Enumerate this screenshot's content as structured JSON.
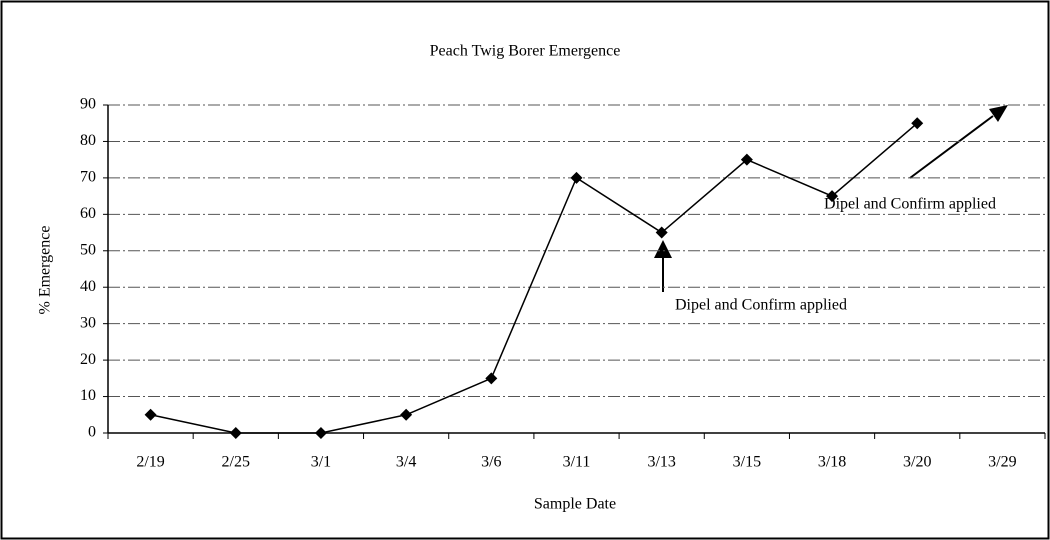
{
  "chart_data": {
    "type": "line",
    "title": "Peach Twig Borer Emergence",
    "x_label": "Sample Date",
    "y_label": "% Emergence",
    "categories": [
      "2/19",
      "2/25",
      "3/1",
      "3/4",
      "3/6",
      "3/11",
      "3/13",
      "3/15",
      "3/18",
      "3/20",
      "3/29"
    ],
    "values": [
      5,
      0,
      0,
      5,
      15,
      70,
      55,
      75,
      65,
      85,
      null
    ],
    "color": "#000000",
    "ylim": [
      0,
      90
    ],
    "yticks": [
      0,
      10,
      20,
      30,
      40,
      50,
      60,
      70,
      80,
      90
    ],
    "grid": true,
    "annotations": [
      "Dipel and Confirm applied",
      "Dipel and Confirm applied"
    ]
  }
}
